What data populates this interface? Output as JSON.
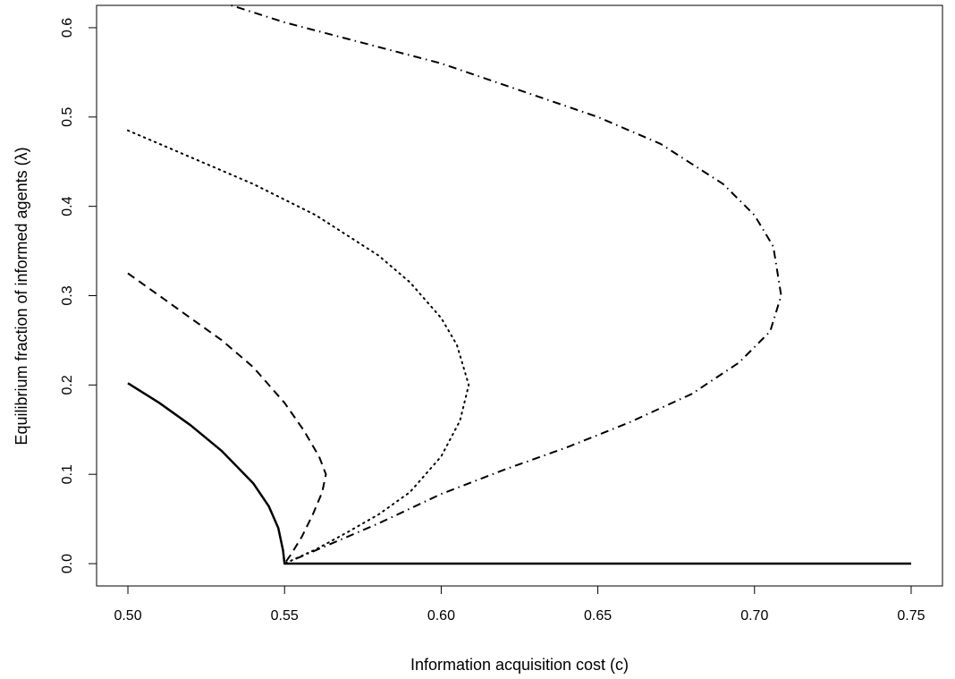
{
  "chart_data": {
    "type": "line",
    "title": "",
    "xlabel": "Information acquisition cost  (c)",
    "ylabel": "Equilibrium fraction of informed agents  (λ)",
    "xlim": [
      0.49,
      0.76
    ],
    "ylim": [
      -0.025,
      0.625
    ],
    "x_ticks": [
      0.5,
      0.55,
      0.6,
      0.65,
      0.7,
      0.75
    ],
    "x_tick_labels": [
      "0.50",
      "0.55",
      "0.60",
      "0.65",
      "0.70",
      "0.75"
    ],
    "y_ticks": [
      0.0,
      0.1,
      0.2,
      0.3,
      0.4,
      0.5,
      0.6
    ],
    "y_tick_labels": [
      "0.0",
      "0.1",
      "0.2",
      "0.3",
      "0.4",
      "0.5",
      "0.6"
    ],
    "grid": false,
    "legend": "none",
    "series": [
      {
        "style": "solid",
        "color": "#000000",
        "points": [
          [
            0.5,
            0.202
          ],
          [
            0.51,
            0.18
          ],
          [
            0.52,
            0.155
          ],
          [
            0.53,
            0.126
          ],
          [
            0.54,
            0.09
          ],
          [
            0.545,
            0.064
          ],
          [
            0.548,
            0.04
          ],
          [
            0.5495,
            0.015
          ],
          [
            0.55,
            0.0
          ],
          [
            0.56,
            0.0
          ],
          [
            0.6,
            0.0
          ],
          [
            0.65,
            0.0
          ],
          [
            0.7,
            0.0
          ],
          [
            0.75,
            0.0
          ]
        ]
      },
      {
        "style": "dashed",
        "color": "#000000",
        "points": [
          [
            0.5,
            0.325
          ],
          [
            0.51,
            0.3
          ],
          [
            0.52,
            0.275
          ],
          [
            0.53,
            0.25
          ],
          [
            0.54,
            0.22
          ],
          [
            0.55,
            0.18
          ],
          [
            0.556,
            0.15
          ],
          [
            0.561,
            0.12
          ],
          [
            0.5632,
            0.1
          ],
          [
            0.562,
            0.08
          ],
          [
            0.559,
            0.055
          ],
          [
            0.5555,
            0.03
          ],
          [
            0.552,
            0.01
          ],
          [
            0.55,
            0.0
          ]
        ]
      },
      {
        "style": "dotted",
        "color": "#000000",
        "points": [
          [
            0.5,
            0.485
          ],
          [
            0.52,
            0.455
          ],
          [
            0.54,
            0.425
          ],
          [
            0.56,
            0.39
          ],
          [
            0.58,
            0.345
          ],
          [
            0.59,
            0.315
          ],
          [
            0.6,
            0.275
          ],
          [
            0.605,
            0.245
          ],
          [
            0.6088,
            0.2
          ],
          [
            0.606,
            0.16
          ],
          [
            0.6,
            0.12
          ],
          [
            0.59,
            0.08
          ],
          [
            0.58,
            0.055
          ],
          [
            0.57,
            0.035
          ],
          [
            0.56,
            0.016
          ],
          [
            0.55,
            0.0
          ]
        ]
      },
      {
        "style": "dotdash",
        "color": "#000000",
        "points": [
          [
            0.533,
            0.625
          ],
          [
            0.55,
            0.606
          ],
          [
            0.6,
            0.56
          ],
          [
            0.65,
            0.5
          ],
          [
            0.67,
            0.47
          ],
          [
            0.69,
            0.425
          ],
          [
            0.7,
            0.39
          ],
          [
            0.706,
            0.355
          ],
          [
            0.7085,
            0.3
          ],
          [
            0.705,
            0.26
          ],
          [
            0.695,
            0.225
          ],
          [
            0.68,
            0.19
          ],
          [
            0.66,
            0.158
          ],
          [
            0.64,
            0.13
          ],
          [
            0.62,
            0.105
          ],
          [
            0.6,
            0.078
          ],
          [
            0.58,
            0.045
          ],
          [
            0.56,
            0.015
          ],
          [
            0.55,
            0.0
          ]
        ]
      }
    ]
  }
}
